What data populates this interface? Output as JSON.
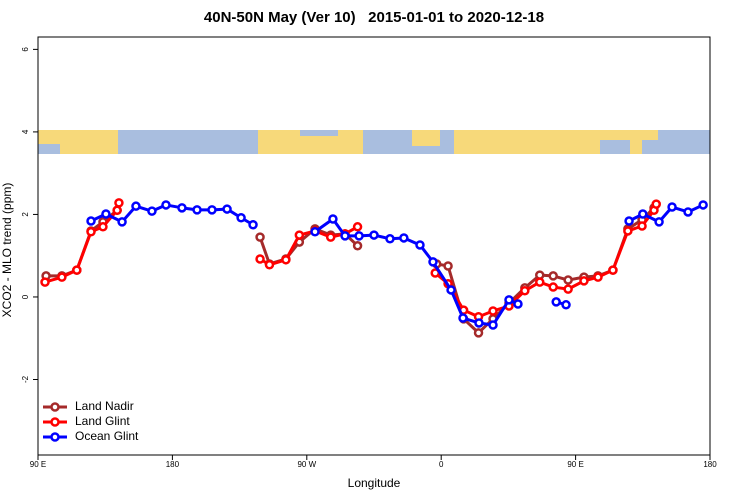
{
  "chart_data": {
    "type": "line",
    "title": "40N-50N May (Ver 10)   2015-01-01 to 2020-12-18",
    "x_label": "Longitude",
    "y_label": "XCO2 - MLO trend (ppm)",
    "xlim": [
      90,
      540
    ],
    "xticks": [
      {
        "value": 90,
        "label": "90 E"
      },
      180,
      {
        "value": 270,
        "label": "90 W"
      },
      {
        "value": 360,
        "label": "0"
      },
      {
        "value": 450,
        "label": "90 E"
      },
      {
        "value": 540,
        "label": "180"
      }
    ],
    "ylim": [
      -3.83,
      6.3
    ],
    "yticks": [
      -2,
      0,
      2,
      4,
      6
    ],
    "legend": "bottom-left",
    "series": [
      {
        "name": "Land Nadir",
        "color": "#a52a2a",
        "x": [
          95.4,
          106,
          116,
          125.5,
          133.5,
          143,
          null,
          238.7,
          245,
          256,
          265,
          275.5,
          286,
          295.6,
          304,
          null,
          357,
          364.6,
          375,
          385,
          394.7,
          405.4,
          416,
          426,
          435,
          445,
          455.6,
          465,
          475,
          485,
          494.5,
          502.5
        ],
        "values": [
          0.51,
          0.51,
          0.65,
          1.6,
          1.82,
          2.1,
          null,
          1.45,
          0.8,
          0.92,
          1.33,
          1.65,
          1.5,
          1.53,
          1.24,
          null,
          0.8,
          0.75,
          -0.53,
          -0.87,
          -0.53,
          -0.15,
          0.22,
          0.53,
          0.51,
          0.41,
          0.48,
          0.51,
          0.65,
          1.65,
          1.87,
          2.16
        ]
      },
      {
        "name": "Land Glint",
        "color": "#ff0000",
        "x": [
          94.7,
          106,
          116,
          125.5,
          133.5,
          143,
          144.2,
          null,
          238.7,
          245,
          256,
          265,
          275.5,
          286,
          295.6,
          304,
          null,
          356,
          364.6,
          375,
          385,
          394.7,
          405.4,
          416,
          426,
          435,
          445,
          455.6,
          465,
          475,
          485,
          494.5,
          502.5,
          504
        ],
        "values": [
          0.36,
          0.48,
          0.65,
          1.58,
          1.7,
          2.1,
          2.28,
          null,
          0.92,
          0.78,
          0.9,
          1.5,
          1.6,
          1.45,
          1.53,
          1.7,
          null,
          0.58,
          0.32,
          -0.32,
          -0.48,
          -0.34,
          -0.22,
          0.15,
          0.36,
          0.24,
          0.19,
          0.39,
          0.48,
          0.65,
          1.6,
          1.72,
          2.1,
          2.25
        ]
      },
      {
        "name": "Ocean Glint",
        "color": "#0000ff",
        "x": [
          125.5,
          135.5,
          146.3,
          155.6,
          166.3,
          175.7,
          186.4,
          196.5,
          206.5,
          216.6,
          226,
          234,
          null,
          275.5,
          287.5,
          295.6,
          305,
          315,
          325.7,
          335,
          345.8,
          354.5,
          366.6,
          374.6,
          385.3,
          394.7,
          405.4,
          411.4,
          null,
          437,
          443.6,
          null,
          485.8,
          495,
          505.9,
          514.6,
          525.3,
          535.4
        ],
        "values": [
          1.84,
          2.01,
          1.82,
          2.2,
          2.08,
          2.23,
          2.16,
          2.11,
          2.11,
          2.13,
          1.92,
          1.75,
          null,
          1.58,
          1.89,
          1.48,
          1.48,
          1.5,
          1.41,
          1.43,
          1.26,
          0.85,
          0.17,
          -0.51,
          -0.63,
          -0.68,
          -0.07,
          -0.17,
          null,
          -0.12,
          -0.19,
          null,
          1.84,
          2.01,
          1.82,
          2.18,
          2.06,
          2.23
        ]
      }
    ]
  }
}
